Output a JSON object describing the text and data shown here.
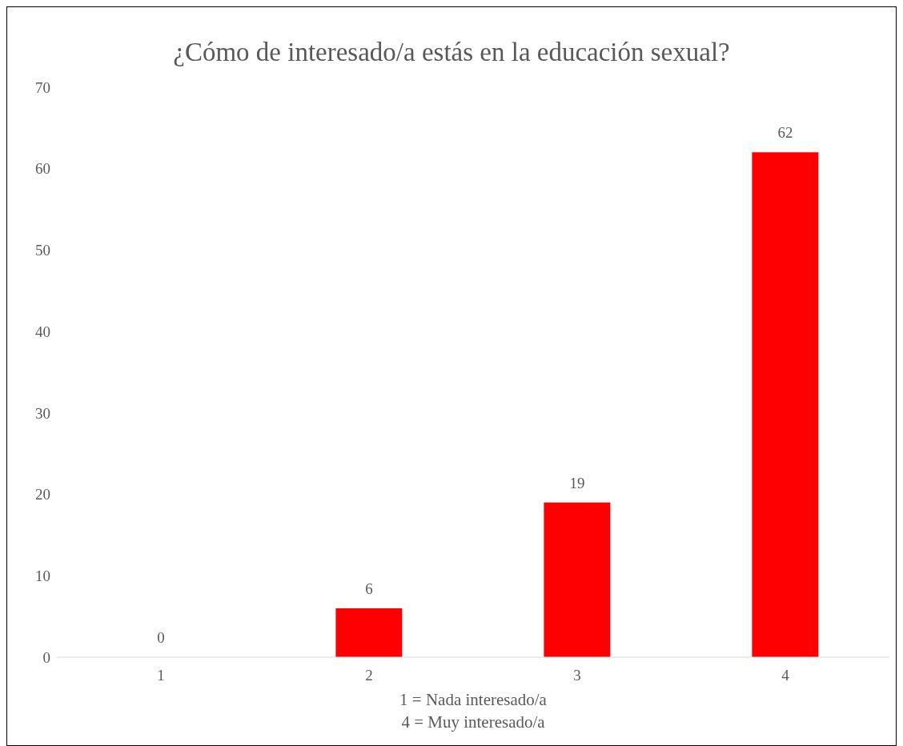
{
  "chart_data": {
    "type": "bar",
    "title": "¿Cómo de interesado/a estás en la educación sexual?",
    "xlabel": "1 = Nada interesado/a\n4 = Muy interesado/a",
    "categories": [
      "1",
      "2",
      "3",
      "4"
    ],
    "values": [
      0,
      6,
      19,
      62
    ],
    "color": "#ff0000",
    "ylim": [
      0,
      70
    ],
    "yticks": [
      0,
      10,
      20,
      30,
      40,
      50,
      60,
      70
    ],
    "grid": false,
    "data_labels": true
  }
}
